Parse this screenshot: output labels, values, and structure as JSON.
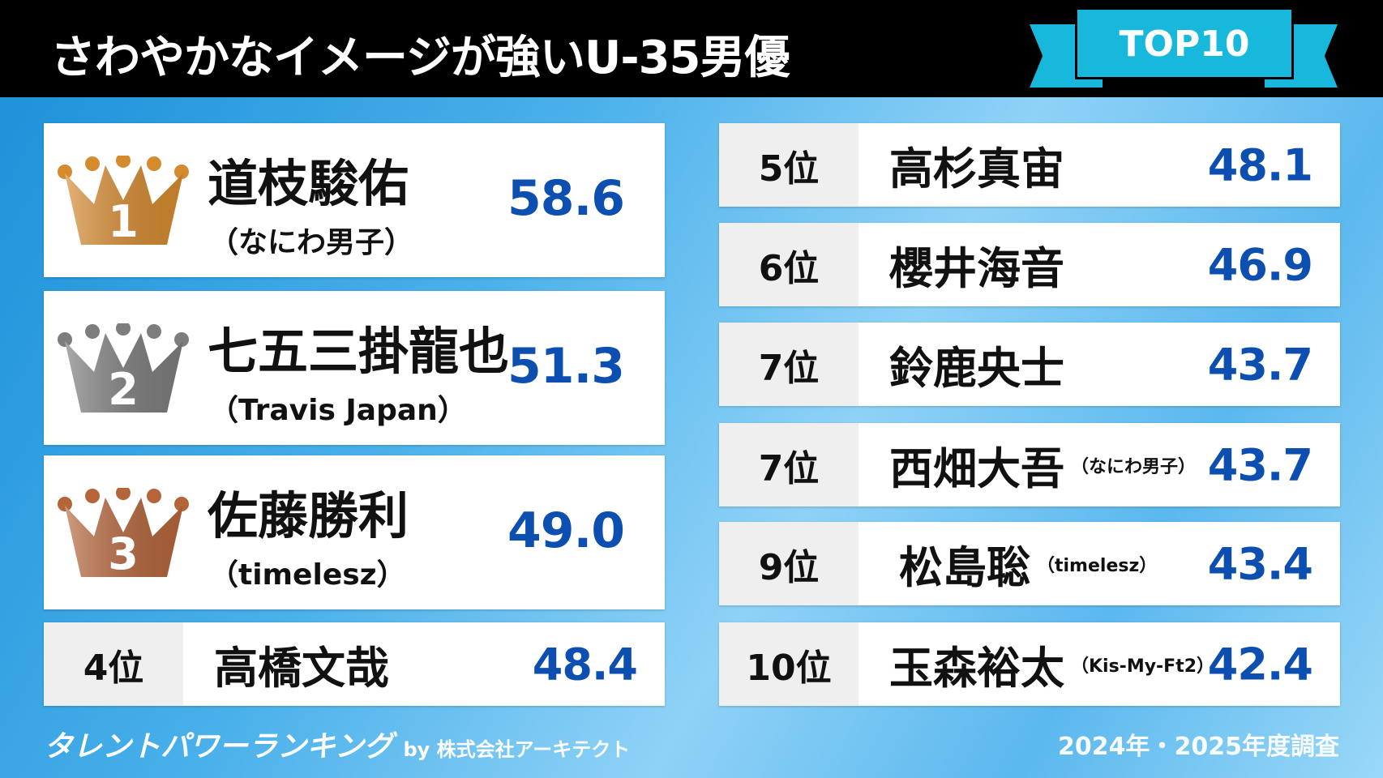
{
  "header": {
    "title": "さわやかなイメージが強いU-35男優",
    "badge": "TOP10"
  },
  "top3": [
    {
      "rank": "1",
      "name": "道枝駿佑",
      "group": "（なにわ男子）",
      "score": "58.6",
      "crown_color": "#d68a2e"
    },
    {
      "rank": "2",
      "name": "七五三掛龍也",
      "group": "（Travis Japan）",
      "score": "51.3",
      "crown_color": "#7d7d7d"
    },
    {
      "rank": "3",
      "name": "佐藤勝利",
      "group": "（timelesz）",
      "score": "49.0",
      "crown_color": "#b5653a"
    }
  ],
  "rows": [
    {
      "rank": "4位",
      "name": "高橋文哉",
      "group": "",
      "score": "48.4"
    },
    {
      "rank": "5位",
      "name": "高杉真宙",
      "group": "",
      "score": "48.1"
    },
    {
      "rank": "6位",
      "name": "櫻井海音",
      "group": "",
      "score": "46.9"
    },
    {
      "rank": "7位",
      "name": "鈴鹿央士",
      "group": "",
      "score": "43.7"
    },
    {
      "rank": "7位",
      "name": "西畑大吾",
      "group": "（なにわ男子）",
      "score": "43.7"
    },
    {
      "rank": "9位",
      "name": "松島聡",
      "group": "（timelesz）",
      "score": "43.4"
    },
    {
      "rank": "10位",
      "name": "玉森裕太",
      "group": "（Kis-My-Ft2）",
      "score": "42.4"
    }
  ],
  "footer": {
    "logo": "タレントパワーランキング",
    "by": "by 株式会社アーキテクト",
    "survey": "2024年・2025年度調査"
  },
  "colors": {
    "score": "#0d4fb0",
    "badge": "#17b8dc"
  }
}
